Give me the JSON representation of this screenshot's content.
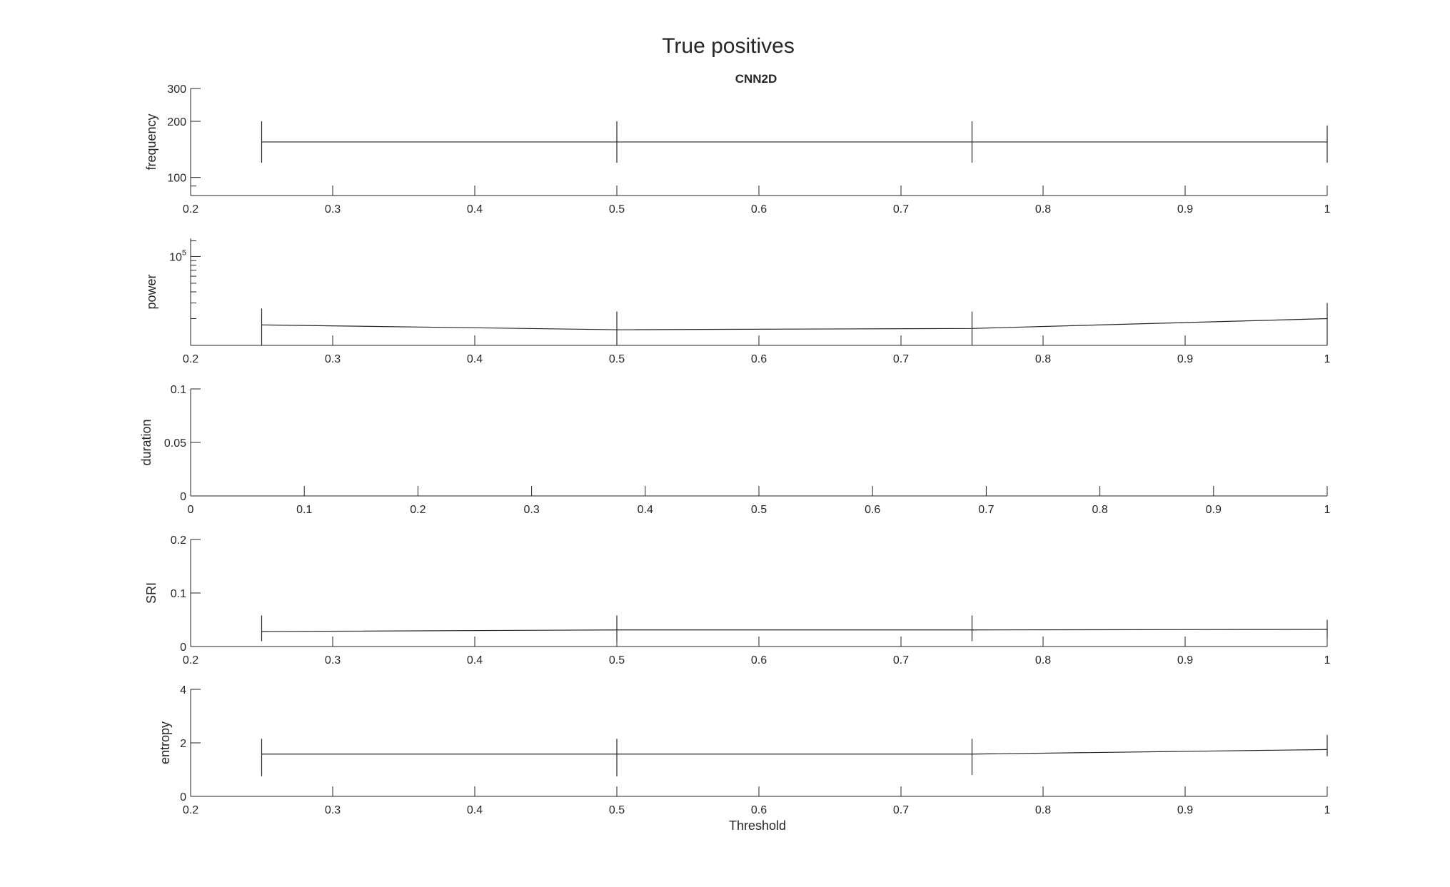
{
  "figure": {
    "title": "True positives",
    "subtitle": "CNN2D",
    "xlabel": "Threshold"
  },
  "chart_data": [
    {
      "type": "line",
      "ylabel": "frequency",
      "xlim": [
        0.2,
        1
      ],
      "ylim": [
        80,
        300
      ],
      "yscale": "log",
      "xticks": [
        0.2,
        0.3,
        0.4,
        0.5,
        0.6,
        0.7,
        0.8,
        0.9,
        1
      ],
      "xticklabels": [
        "0.2",
        "0.3",
        "0.4",
        "0.5",
        "0.6",
        "0.7",
        "0.8",
        "0.9",
        "1"
      ],
      "yticks": [
        100,
        200,
        300
      ],
      "yticklabels": [
        "100",
        "200",
        "300"
      ],
      "yminorticks": [
        90,
        400,
        500,
        600,
        700,
        800,
        900
      ],
      "grid": false,
      "series": [
        {
          "x": [
            0.25,
            0.5,
            0.75,
            1
          ],
          "y": [
            155,
            155,
            155,
            155
          ],
          "lower": [
            120,
            120,
            120,
            120
          ],
          "upper": [
            200,
            200,
            200,
            190
          ]
        }
      ]
    },
    {
      "type": "line",
      "ylabel": "power",
      "xlim": [
        0.2,
        1
      ],
      "ylim": [
        0,
        160000
      ],
      "yscale": "log",
      "xticks": [
        0.2,
        0.3,
        0.4,
        0.5,
        0.6,
        0.7,
        0.8,
        0.9,
        1
      ],
      "xticklabels": [
        "0.2",
        "0.3",
        "0.4",
        "0.5",
        "0.6",
        "0.7",
        "0.8",
        "0.9",
        "1"
      ],
      "yticks": [
        100000
      ],
      "yticklabels": [
        "10^5"
      ],
      "grid": false,
      "series": [
        {
          "x": [
            0.25,
            0.5,
            0.75,
            1
          ],
          "y": [
            17000,
            15000,
            15500,
            20000
          ],
          "lower": [
            8000,
            7500,
            8000,
            10000
          ],
          "upper": [
            26000,
            24000,
            24000,
            30000
          ]
        }
      ]
    },
    {
      "type": "line",
      "ylabel": "duration",
      "xlim": [
        0,
        1
      ],
      "ylim": [
        0,
        0.1
      ],
      "yscale": "linear",
      "xticks": [
        0,
        0.1,
        0.2,
        0.3,
        0.4,
        0.5,
        0.6,
        0.7,
        0.8,
        0.9,
        1
      ],
      "xticklabels": [
        "0",
        "0.1",
        "0.2",
        "0.3",
        "0.4",
        "0.5",
        "0.6",
        "0.7",
        "0.8",
        "0.9",
        "1"
      ],
      "yticks": [
        0,
        0.05,
        0.1
      ],
      "yticklabels": [
        "0",
        "0.05",
        "0.1"
      ],
      "grid": false,
      "series": []
    },
    {
      "type": "line",
      "ylabel": "SRI",
      "xlim": [
        0.2,
        1
      ],
      "ylim": [
        0,
        0.2
      ],
      "yscale": "linear",
      "xticks": [
        0.2,
        0.3,
        0.4,
        0.5,
        0.6,
        0.7,
        0.8,
        0.9,
        1
      ],
      "xticklabels": [
        "0.2",
        "0.3",
        "0.4",
        "0.5",
        "0.6",
        "0.7",
        "0.8",
        "0.9",
        "1"
      ],
      "yticks": [
        0,
        0.1,
        0.2
      ],
      "yticklabels": [
        "0",
        "0.1",
        "0.2"
      ],
      "grid": false,
      "series": [
        {
          "x": [
            0.25,
            0.5,
            0.75,
            1
          ],
          "y": [
            0.028,
            0.031,
            0.031,
            0.032
          ],
          "lower": [
            0.01,
            0.01,
            0.01,
            0.015
          ],
          "upper": [
            0.058,
            0.058,
            0.058,
            0.05
          ]
        }
      ]
    },
    {
      "type": "line",
      "ylabel": "entropy",
      "xlim": [
        0.2,
        1
      ],
      "ylim": [
        0,
        4
      ],
      "yscale": "linear",
      "xticks": [
        0.2,
        0.3,
        0.4,
        0.5,
        0.6,
        0.7,
        0.8,
        0.9,
        1
      ],
      "xticklabels": [
        "0.2",
        "0.3",
        "0.4",
        "0.5",
        "0.6",
        "0.7",
        "0.8",
        "0.9",
        "1"
      ],
      "yticks": [
        0,
        2,
        4
      ],
      "yticklabels": [
        "0",
        "2",
        "4"
      ],
      "grid": false,
      "series": [
        {
          "x": [
            0.25,
            0.5,
            0.75,
            1
          ],
          "y": [
            1.58,
            1.58,
            1.58,
            1.75
          ],
          "lower": [
            0.75,
            0.75,
            0.8,
            1.5
          ],
          "upper": [
            2.15,
            2.15,
            2.15,
            2.3
          ]
        }
      ]
    }
  ]
}
